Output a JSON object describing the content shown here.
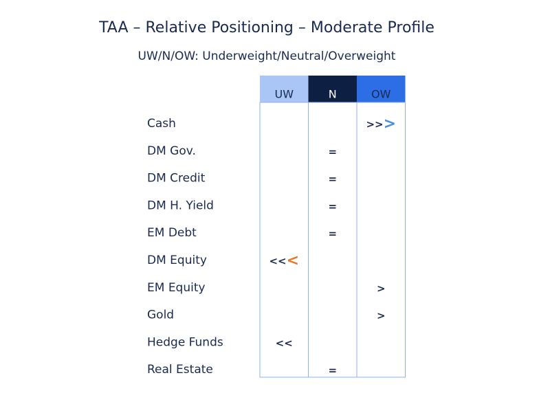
{
  "header": {
    "title": "TAA – Relative Positioning – Moderate Profile",
    "subtitle": "UW/N/OW: Underweight/Neutral/Overweight"
  },
  "table": {
    "columns": [
      {
        "label": "UW",
        "color": "#a9c6f7",
        "text_color": "#1a2a4f"
      },
      {
        "label": "N",
        "color": "#0e1f44",
        "text_color": "#ffffff"
      },
      {
        "label": "OW",
        "color": "#2d6ee6",
        "text_color": "#1a2a4f"
      }
    ],
    "rows": [
      {
        "asset": "Cash",
        "column": "OW",
        "position": ">>",
        "change": ">",
        "change_color": "#4a90d9"
      },
      {
        "asset": "DM Gov.",
        "column": "N",
        "position": "="
      },
      {
        "asset": "DM Credit",
        "column": "N",
        "position": "="
      },
      {
        "asset": "DM H. Yield",
        "column": "N",
        "position": "="
      },
      {
        "asset": "EM Debt",
        "column": "N",
        "position": "="
      },
      {
        "asset": "DM Equity",
        "column": "UW",
        "position": "<<",
        "change": "<",
        "change_color": "#e8782a"
      },
      {
        "asset": "EM Equity",
        "column": "OW",
        "position": ">"
      },
      {
        "asset": "Gold",
        "column": "OW",
        "position": ">"
      },
      {
        "asset": "Hedge Funds",
        "column": "UW",
        "position": "<<"
      },
      {
        "asset": "Real Estate",
        "column": "N",
        "position": "="
      }
    ]
  }
}
